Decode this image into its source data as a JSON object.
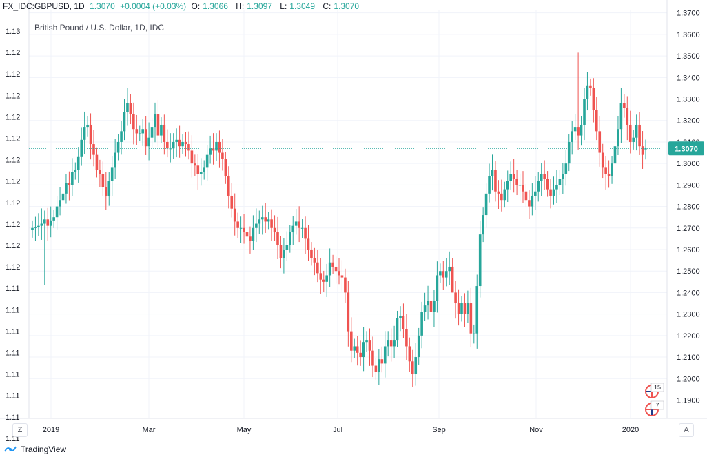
{
  "header": {
    "symbol": "FX_IDC:GBPUSD, 1D",
    "last": "1.3070",
    "change": "+0.0004 (+0.03%)",
    "o_label": "O:",
    "o_value": "1.3066",
    "h_label": "H:",
    "h_value": "1.3097",
    "l_label": "L:",
    "l_value": "1.3049",
    "c_label": "C:",
    "c_value": "1.3070"
  },
  "footer": {
    "brand": "TradingView",
    "logo_icon": "tradingview-logo-icon"
  },
  "buttons": {
    "left": "Z",
    "right": "A"
  },
  "markers": [
    {
      "label": "15",
      "icon": "gb-flag-event-icon"
    },
    {
      "label": "7",
      "icon": "us-flag-event-icon"
    }
  ],
  "colors": {
    "up": "#26a69a",
    "down": "#ef5350",
    "grid": "#f0f3fa",
    "price_line": "#26a69a"
  },
  "chart_data": {
    "type": "candlestick",
    "title": "British Pound / U.S. Dollar, 1D, IDC",
    "current_price_label": "1.3070",
    "current_price": 1.307,
    "ylim": [
      1.1815,
      1.3715
    ],
    "x_tick_labels": [
      "2019",
      "Mar",
      "May",
      "Jul",
      "Sep",
      "Nov",
      "2020"
    ],
    "y_tick_labels_right": [
      "1.3700",
      "1.3600",
      "1.3500",
      "1.3400",
      "1.3300",
      "1.3200",
      "1.3100",
      "1.3000",
      "1.2900",
      "1.2800",
      "1.2700",
      "1.2600",
      "1.2500",
      "1.2400",
      "1.2300",
      "1.2200",
      "1.2100",
      "1.2000",
      "1.1900"
    ],
    "y_tick_labels_left": [
      "1.13",
      "1.12",
      "1.12",
      "1.12",
      "1.12",
      "1.12",
      "1.12",
      "1.12",
      "1.12",
      "1.12",
      "1.12",
      "1.12",
      "1.11",
      "1.11",
      "1.11",
      "1.11",
      "1.11",
      "1.11",
      "1.11",
      "1.11"
    ],
    "grid": true,
    "series": [
      {
        "name": "GBPUSD",
        "close": [
          1.27,
          1.2705,
          1.271,
          1.272,
          1.274,
          1.271,
          1.2735,
          1.275,
          1.28,
          1.283,
          1.286,
          1.291,
          1.29,
          1.296,
          1.297,
          1.303,
          1.311,
          1.317,
          1.318,
          1.309,
          1.304,
          1.297,
          1.295,
          1.289,
          1.285,
          1.292,
          1.298,
          1.305,
          1.31,
          1.315,
          1.324,
          1.328,
          1.323,
          1.316,
          1.314,
          1.314,
          1.316,
          1.308,
          1.312,
          1.317,
          1.323,
          1.313,
          1.318,
          1.31,
          1.307,
          1.307,
          1.31,
          1.311,
          1.308,
          1.31,
          1.309,
          1.306,
          1.3,
          1.299,
          1.295,
          1.296,
          1.298,
          1.304,
          1.307,
          1.306,
          1.31,
          1.305,
          1.302,
          1.294,
          1.285,
          1.279,
          1.273,
          1.27,
          1.27,
          1.268,
          1.266,
          1.264,
          1.27,
          1.272,
          1.274,
          1.275,
          1.273,
          1.274,
          1.27,
          1.268,
          1.262,
          1.256,
          1.26,
          1.262,
          1.268,
          1.271,
          1.273,
          1.27,
          1.27,
          1.265,
          1.26,
          1.256,
          1.254,
          1.249,
          1.246,
          1.245,
          1.248,
          1.254,
          1.252,
          1.25,
          1.248,
          1.247,
          1.24,
          1.222,
          1.213,
          1.215,
          1.212,
          1.21,
          1.217,
          1.218,
          1.213,
          1.206,
          1.203,
          1.209,
          1.207,
          1.215,
          1.218,
          1.215,
          1.218,
          1.228,
          1.229,
          1.223,
          1.215,
          1.208,
          1.202,
          1.21,
          1.22,
          1.231,
          1.234,
          1.236,
          1.231,
          1.236,
          1.248,
          1.25,
          1.247,
          1.25,
          1.252,
          1.24,
          1.235,
          1.23,
          1.235,
          1.23,
          1.235,
          1.221,
          1.221,
          1.243,
          1.267,
          1.276,
          1.286,
          1.294,
          1.297,
          1.287,
          1.286,
          1.283,
          1.288,
          1.292,
          1.295,
          1.293,
          1.29,
          1.29,
          1.287,
          1.283,
          1.28,
          1.285,
          1.287,
          1.292,
          1.295,
          1.293,
          1.288,
          1.285,
          1.288,
          1.29,
          1.293,
          1.295,
          1.3,
          1.31,
          1.315,
          1.317,
          1.313,
          1.318,
          1.33,
          1.336,
          1.335,
          1.325,
          1.315,
          1.305,
          1.298,
          1.295,
          1.294,
          1.3,
          1.308,
          1.316,
          1.328,
          1.326,
          1.318,
          1.31,
          1.312,
          1.318,
          1.308,
          1.304,
          1.307
        ],
        "open": [
          1.269,
          1.27,
          1.2705,
          1.271,
          1.272,
          1.274,
          1.271,
          1.2735,
          1.275,
          1.28,
          1.283,
          1.286,
          1.291,
          1.29,
          1.296,
          1.297,
          1.303,
          1.311,
          1.317,
          1.318,
          1.309,
          1.304,
          1.297,
          1.295,
          1.289,
          1.285,
          1.292,
          1.298,
          1.305,
          1.31,
          1.315,
          1.324,
          1.328,
          1.323,
          1.316,
          1.314,
          1.314,
          1.316,
          1.308,
          1.312,
          1.317,
          1.323,
          1.313,
          1.318,
          1.31,
          1.307,
          1.307,
          1.31,
          1.311,
          1.308,
          1.31,
          1.309,
          1.306,
          1.3,
          1.299,
          1.295,
          1.296,
          1.298,
          1.304,
          1.307,
          1.306,
          1.31,
          1.305,
          1.302,
          1.294,
          1.285,
          1.279,
          1.273,
          1.27,
          1.27,
          1.268,
          1.266,
          1.264,
          1.27,
          1.272,
          1.274,
          1.275,
          1.273,
          1.274,
          1.27,
          1.268,
          1.262,
          1.256,
          1.26,
          1.262,
          1.268,
          1.271,
          1.273,
          1.27,
          1.27,
          1.265,
          1.26,
          1.256,
          1.254,
          1.249,
          1.246,
          1.245,
          1.248,
          1.254,
          1.252,
          1.25,
          1.248,
          1.247,
          1.24,
          1.222,
          1.213,
          1.215,
          1.212,
          1.21,
          1.217,
          1.218,
          1.213,
          1.206,
          1.203,
          1.209,
          1.207,
          1.215,
          1.218,
          1.215,
          1.218,
          1.228,
          1.229,
          1.223,
          1.215,
          1.208,
          1.202,
          1.21,
          1.22,
          1.231,
          1.234,
          1.236,
          1.231,
          1.236,
          1.248,
          1.25,
          1.247,
          1.25,
          1.252,
          1.24,
          1.235,
          1.23,
          1.235,
          1.23,
          1.235,
          1.221,
          1.221,
          1.243,
          1.267,
          1.276,
          1.286,
          1.294,
          1.297,
          1.287,
          1.286,
          1.283,
          1.288,
          1.292,
          1.295,
          1.293,
          1.29,
          1.29,
          1.287,
          1.283,
          1.28,
          1.285,
          1.287,
          1.292,
          1.295,
          1.293,
          1.288,
          1.285,
          1.288,
          1.29,
          1.293,
          1.295,
          1.3,
          1.31,
          1.315,
          1.317,
          1.313,
          1.318,
          1.33,
          1.336,
          1.335,
          1.325,
          1.315,
          1.305,
          1.298,
          1.295,
          1.294,
          1.3,
          1.308,
          1.316,
          1.328,
          1.326,
          1.318,
          1.31,
          1.312,
          1.318,
          1.308,
          1.3066
        ]
      }
    ],
    "annotations": [
      {
        "x_index": 137,
        "note": "wick low",
        "value": 1.244
      },
      {
        "x_index": 4,
        "note": "wick low",
        "value": 1.2435
      },
      {
        "x_index": 178,
        "note": "wick high",
        "value": 1.3515
      },
      {
        "x_index": 124,
        "note": "wick low",
        "value": 1.196
      }
    ]
  }
}
